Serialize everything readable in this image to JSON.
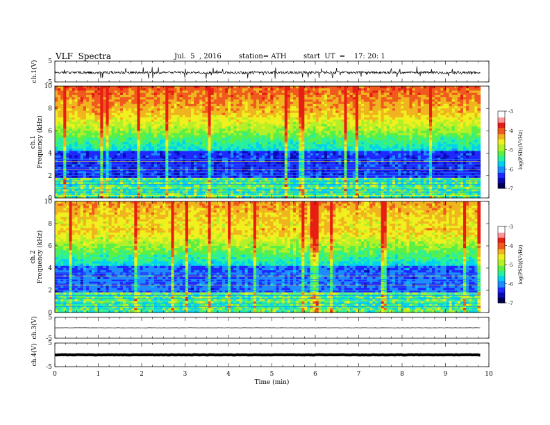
{
  "header": {
    "title": "VLF  Spectra",
    "date": "Jul.  5  , 2016",
    "station": "station= ATH",
    "start": "start  UT  =    17: 20: 1"
  },
  "chart_data": {
    "type": "heatmap",
    "title": "VLF  Spectra",
    "xlabel": "Time  (min)",
    "xlim": [
      0,
      10
    ],
    "xticks": [
      "0",
      "1",
      "2",
      "3",
      "4",
      "5",
      "6",
      "7",
      "8",
      "9",
      "10"
    ],
    "data_end_min": 9.8,
    "panels": [
      {
        "kind": "waveform",
        "ylabel": "ch.1(V)",
        "ylim": [
          -5,
          5
        ],
        "yticks": [
          "5",
          "-5"
        ],
        "baseline": -0.5,
        "amplitude": 0.6,
        "trace_color": "#000000"
      },
      {
        "kind": "spectrogram",
        "ylabel_line1": "ch.1",
        "ylabel_line2": "Frequency  (kHz)",
        "ylim": [
          0,
          10
        ],
        "yticks": [
          "0",
          "2",
          "4",
          "6",
          "8",
          "10"
        ],
        "colorbar": {
          "label": "log(PSD)(V²/Hz)",
          "range": [
            -7,
            -3
          ],
          "ticks": [
            "-3",
            "-4",
            "-5",
            "-6",
            "-7"
          ]
        }
      },
      {
        "kind": "spectrogram",
        "ylabel_line1": "ch.2",
        "ylabel_line2": "Frequency  (kHz)",
        "ylim": [
          0,
          10
        ],
        "yticks": [
          "0",
          "2",
          "4",
          "6",
          "8",
          "10"
        ],
        "colorbar": {
          "label": "log(PSD)(V²/Hz)",
          "range": [
            -7,
            -3
          ],
          "ticks": [
            "-3",
            "-4",
            "-5",
            "-6",
            "-7"
          ]
        }
      },
      {
        "kind": "waveform",
        "ylabel": "ch.3(V)",
        "ylim": [
          -5,
          5
        ],
        "yticks": [
          "5",
          "-5"
        ],
        "baseline": 0,
        "amplitude": 0.05,
        "trace_color": "#000000"
      },
      {
        "kind": "waveform",
        "ylabel": "ch.4(V)",
        "ylim": [
          -5,
          5
        ],
        "yticks": [
          "5",
          "-5"
        ],
        "baseline": 0,
        "amplitude": 0.1,
        "trace_color": "#000000"
      }
    ],
    "colormap": [
      "#000050",
      "#0a0ab4",
      "#1e28ff",
      "#1e8cff",
      "#00d2f0",
      "#28f0a0",
      "#5af046",
      "#b4f028",
      "#f0f01e",
      "#f0b41e",
      "#f05a1e",
      "#e61e14",
      "#ff9696",
      "#ffffff"
    ]
  }
}
